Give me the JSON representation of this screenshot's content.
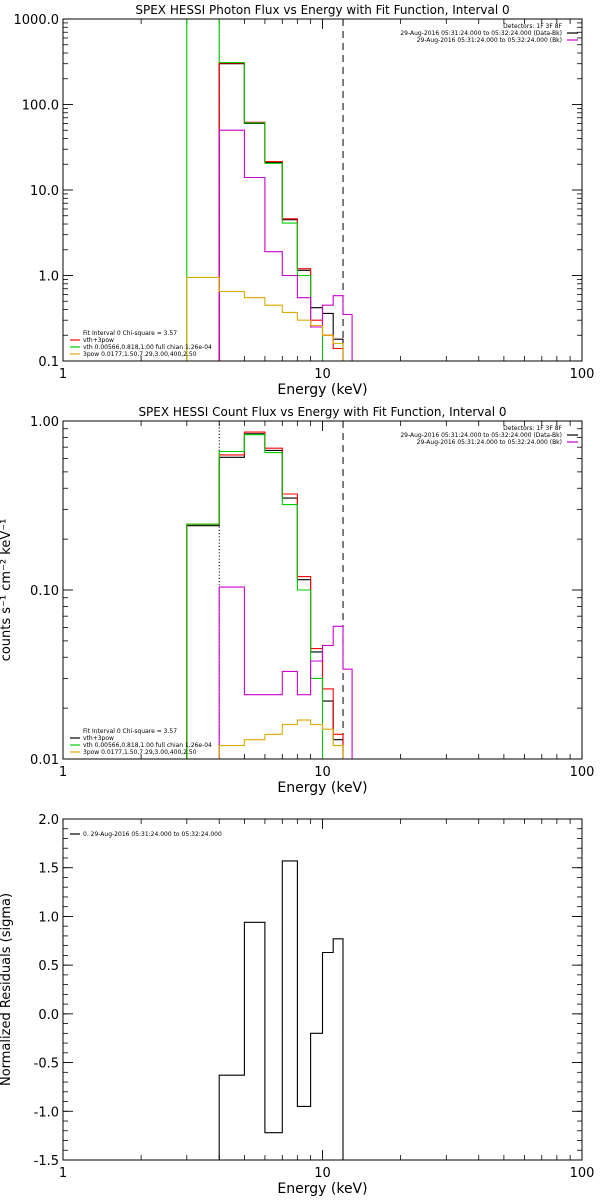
{
  "chart_data": [
    {
      "type": "line",
      "title": "SPEX HESSI Photon Flux vs Energy with Fit Function, Interval 0",
      "xlabel": "Energy (keV)",
      "ylabel": "",
      "xscale": "log",
      "yscale": "log",
      "xlim": [
        1,
        100
      ],
      "ylim": [
        0.1,
        1000
      ],
      "xticks": [
        {
          "v": 1,
          "label": "1"
        },
        {
          "v": 10,
          "label": "10"
        },
        {
          "v": 100,
          "label": "100"
        }
      ],
      "yticks": [
        {
          "v": 0.1,
          "label": "0.1"
        },
        {
          "v": 1,
          "label": "1.0"
        },
        {
          "v": 10,
          "label": "10.0"
        },
        {
          "v": 100,
          "label": "100.0"
        },
        {
          "v": 1000,
          "label": "1000.0"
        }
      ],
      "vlines": [
        {
          "x": 4.0,
          "style": "dotted",
          "color": "#cc00cc"
        },
        {
          "x": 12.0,
          "style": "dashed",
          "color": "#000000"
        }
      ],
      "info_lines": [
        "Detectors: 1F 3F 8F",
        "29-Aug-2016 05:31:24.000 to 05:32:24.000 (Data-Bk)",
        "29-Aug-2016 05:31:24.000 to 05:32:24.000 (Bk)"
      ],
      "info_colors": [
        "#000000",
        "#000000",
        "#cc00cc"
      ],
      "legend_lines": [
        "Fit Interval 0   Chi-square = 3.57",
        "vth+3pow",
        "vth 0.00566,0.818,1.00  full chian 1.26e-04",
        "3pow 0.0177,1.50,7.29,3.00,400,2.50"
      ],
      "legend_colors": [
        "",
        "#ff0000",
        "#00cc00",
        "#ddaa00"
      ],
      "series": [
        {
          "color": "#000000",
          "edges": [
            4.0,
            5.0,
            6.0,
            7.0,
            8.0,
            9.0,
            10.0,
            11.0,
            12.0,
            13.0
          ],
          "values": [
            300,
            60,
            21,
            4.5,
            1.15,
            0.42,
            0.36,
            0.18,
            0.1
          ]
        },
        {
          "color": "#ff0000",
          "edges": [
            4.0,
            5.0,
            6.0,
            7.0,
            8.0,
            9.0,
            10.0,
            11.0,
            12.0,
            13.0
          ],
          "values": [
            305,
            62,
            21.5,
            4.6,
            1.2,
            0.3,
            0.2,
            0.14,
            0.1
          ]
        },
        {
          "color": "#00cc00",
          "edges": [
            3.0,
            4.0,
            5.0,
            6.0,
            7.0,
            8.0,
            9.0,
            10.0
          ],
          "values": [
            1000,
            310,
            61,
            20.5,
            4.1,
            1.0,
            0.25,
            0.1
          ]
        },
        {
          "color": "#cc00cc",
          "edges": [
            4.0,
            5.0,
            6.0,
            7.0,
            8.0,
            9.0,
            10.0,
            11.0,
            12.0,
            13.0
          ],
          "values": [
            50,
            14,
            1.9,
            1.0,
            0.55,
            0.25,
            0.45,
            0.58,
            0.35
          ]
        },
        {
          "color": "#ddaa00",
          "edges": [
            3.0,
            4.0,
            5.0,
            6.0,
            7.0,
            8.0,
            9.0,
            10.0,
            11.0,
            12.0
          ],
          "values": [
            0.95,
            0.65,
            0.55,
            0.45,
            0.37,
            0.3,
            0.26,
            0.2,
            0.16
          ]
        }
      ]
    },
    {
      "type": "line",
      "title": "SPEX HESSI Count Flux vs Energy with Fit Function, Interval 0",
      "xlabel": "Energy (keV)",
      "ylabel": "counts s⁻¹ cm⁻² keV⁻¹",
      "xscale": "log",
      "yscale": "log",
      "xlim": [
        1,
        100
      ],
      "ylim": [
        0.01,
        1.0
      ],
      "xticks": [
        {
          "v": 1,
          "label": "1"
        },
        {
          "v": 10,
          "label": "10"
        },
        {
          "v": 100,
          "label": "100"
        }
      ],
      "yticks": [
        {
          "v": 0.01,
          "label": "0.01"
        },
        {
          "v": 0.1,
          "label": "0.10"
        },
        {
          "v": 1,
          "label": "1.00"
        }
      ],
      "vlines": [
        {
          "x": 4.0,
          "style": "dotted",
          "color": "#000000"
        },
        {
          "x": 12.0,
          "style": "dashed",
          "color": "#000000"
        }
      ],
      "info_lines": [
        "Detectors: 1F 3F 8F",
        "29-Aug-2016 05:31:24.000 to 05:32:24.000 (Data-Bk)",
        "29-Aug-2016 05:31:24.000 to 05:32:24.000 (Bk)"
      ],
      "info_colors": [
        "#000000",
        "#000000",
        "#cc00cc"
      ],
      "legend_lines": [
        "Fit Interval 0   Chi-square = 3.57",
        "vth+3pow",
        "vth 0.00566,0.818,1.00  full chian 1.26e-04",
        "3pow 0.0177,1.50,7.29,3.00,400,2.50"
      ],
      "legend_colors": [
        "",
        "#000000",
        "#00cc00",
        "#ddaa00"
      ],
      "series": [
        {
          "color": "#000000",
          "edges": [
            3.0,
            4.0,
            5.0,
            6.0,
            7.0,
            8.0,
            9.0,
            10.0,
            11.0,
            12.0,
            13.0
          ],
          "values": [
            0.24,
            0.61,
            0.84,
            0.67,
            0.35,
            0.115,
            0.043,
            0.022,
            0.013,
            0.01
          ]
        },
        {
          "color": "#ff0000",
          "edges": [
            3.0,
            4.0,
            5.0,
            6.0,
            7.0,
            8.0,
            9.0,
            10.0,
            11.0,
            12.0,
            13.0
          ],
          "values": [
            0.245,
            0.63,
            0.86,
            0.69,
            0.37,
            0.12,
            0.045,
            0.026,
            0.014,
            0.01
          ]
        },
        {
          "color": "#00cc00",
          "edges": [
            3.0,
            4.0,
            5.0,
            6.0,
            7.0,
            8.0,
            9.0,
            10.0
          ],
          "values": [
            0.245,
            0.66,
            0.83,
            0.65,
            0.32,
            0.1,
            0.03,
            0.01
          ]
        },
        {
          "color": "#cc00cc",
          "edges": [
            4.0,
            5.0,
            6.0,
            7.0,
            8.0,
            9.0,
            10.0,
            11.0,
            12.0,
            13.0
          ],
          "values": [
            0.104,
            0.024,
            0.024,
            0.033,
            0.024,
            0.038,
            0.047,
            0.061,
            0.034
          ]
        },
        {
          "color": "#ddaa00",
          "edges": [
            3.0,
            4.0,
            5.0,
            6.0,
            7.0,
            8.0,
            9.0,
            10.0,
            11.0,
            12.0
          ],
          "values": [
            0.0095,
            0.012,
            0.013,
            0.014,
            0.016,
            0.017,
            0.016,
            0.015,
            0.012
          ]
        }
      ]
    },
    {
      "type": "line",
      "title": "",
      "xlabel": "Energy (keV)",
      "ylabel": "Normalized Residuals (sigma)",
      "xscale": "log",
      "yscale": "linear",
      "xlim": [
        1,
        100
      ],
      "ylim": [
        -1.5,
        2.0
      ],
      "xticks": [
        {
          "v": 1,
          "label": "1"
        },
        {
          "v": 10,
          "label": "10"
        },
        {
          "v": 100,
          "label": "100"
        }
      ],
      "yticks": [
        {
          "v": -1.5,
          "label": "-1.5"
        },
        {
          "v": -1.0,
          "label": "-1.0"
        },
        {
          "v": -0.5,
          "label": "-0.5"
        },
        {
          "v": 0,
          "label": "0.0"
        },
        {
          "v": 0.5,
          "label": "0.5"
        },
        {
          "v": 1.0,
          "label": "1.0"
        },
        {
          "v": 1.5,
          "label": "1.5"
        },
        {
          "v": 2.0,
          "label": "2.0"
        }
      ],
      "vlines": [],
      "info_lines": [],
      "info_colors": [],
      "legend_lines": [
        "0. 29-Aug-2016 05:31:24.000 to 05:32:24.000"
      ],
      "legend_colors": [
        "#000000"
      ],
      "series": [
        {
          "color": "#000000",
          "edges": [
            4.0,
            5.0,
            6.0,
            7.0,
            8.0,
            9.0,
            10.0,
            11.0,
            12.0
          ],
          "values": [
            -0.63,
            0.94,
            -1.22,
            1.57,
            -0.95,
            -0.2,
            0.63,
            0.77
          ]
        }
      ]
    }
  ]
}
